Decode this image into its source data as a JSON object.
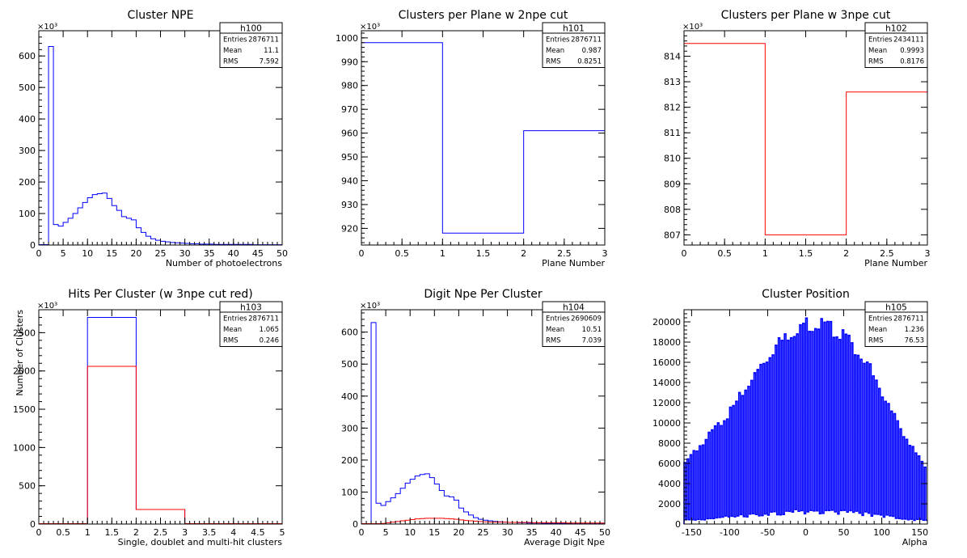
{
  "chart_data": [
    {
      "type": "histogram",
      "title": "Cluster NPE",
      "xlabel": "Number of photoelectrons",
      "ylabel": "",
      "xlim": [
        0,
        50
      ],
      "ylim": [
        0,
        680
      ],
      "y_multiplier": "×10³",
      "x_ticks": [
        0,
        5,
        10,
        15,
        20,
        25,
        30,
        35,
        40,
        45,
        50
      ],
      "y_ticks": [
        0,
        100,
        200,
        300,
        400,
        500,
        600
      ],
      "stats": {
        "name": "h100",
        "rows": [
          [
            "Entries",
            "2876711"
          ],
          [
            "Mean",
            "11.1"
          ],
          [
            "RMS",
            "7.592"
          ]
        ]
      },
      "series": [
        {
          "color": "#0000ff",
          "bin_edges": [
            0,
            1,
            2,
            3,
            4,
            5,
            6,
            7,
            8,
            9,
            10,
            11,
            12,
            13,
            14,
            15,
            16,
            17,
            18,
            19,
            20,
            21,
            22,
            23,
            24,
            25,
            26,
            27,
            28,
            29,
            30,
            31,
            32,
            33,
            34,
            35,
            36,
            37,
            38,
            39,
            40,
            41,
            42,
            43,
            44,
            45,
            46,
            47,
            48,
            49,
            50
          ],
          "values": [
            0,
            0,
            630,
            65,
            60,
            72,
            85,
            100,
            118,
            135,
            150,
            160,
            163,
            165,
            148,
            125,
            110,
            90,
            85,
            80,
            55,
            40,
            28,
            20,
            15,
            12,
            10,
            8,
            7,
            6,
            5,
            4,
            4,
            3,
            3,
            3,
            2,
            2,
            2,
            2,
            2,
            2,
            2,
            2,
            1,
            1,
            1,
            1,
            1,
            1
          ]
        }
      ]
    },
    {
      "type": "histogram",
      "title": "Clusters per Plane w 2npe cut",
      "xlabel": "Plane Number",
      "ylabel": "",
      "xlim": [
        0,
        3
      ],
      "ylim": [
        913,
        1003
      ],
      "y_multiplier": "×10³",
      "x_ticks": [
        0,
        0.5,
        1,
        1.5,
        2,
        2.5,
        3
      ],
      "y_ticks": [
        920,
        930,
        940,
        950,
        960,
        970,
        980,
        990,
        1000
      ],
      "stats": {
        "name": "h101",
        "rows": [
          [
            "Entries",
            "2876711"
          ],
          [
            "Mean",
            "0.987"
          ],
          [
            "RMS",
            "0.8251"
          ]
        ]
      },
      "series": [
        {
          "color": "#0000ff",
          "bin_edges": [
            0,
            1,
            2,
            3
          ],
          "values": [
            998,
            918,
            961
          ]
        }
      ]
    },
    {
      "type": "histogram",
      "title": "Clusters per Plane w 3npe cut",
      "xlabel": "Plane Number",
      "ylabel": "",
      "xlim": [
        0,
        3
      ],
      "ylim": [
        806.6,
        815.0
      ],
      "y_multiplier": "×10³",
      "x_ticks": [
        0,
        0.5,
        1,
        1.5,
        2,
        2.5,
        3
      ],
      "y_ticks": [
        807,
        808,
        809,
        810,
        811,
        812,
        813,
        814
      ],
      "stats": {
        "name": "h102",
        "rows": [
          [
            "Entries",
            "2434111"
          ],
          [
            "Mean",
            "0.9993"
          ],
          [
            "RMS",
            "0.8176"
          ]
        ]
      },
      "series": [
        {
          "color": "#ff0000",
          "bin_edges": [
            0,
            1,
            2,
            3
          ],
          "values": [
            814.5,
            807.0,
            812.6
          ]
        }
      ]
    },
    {
      "type": "histogram",
      "title": "Hits Per Cluster (w 3npe cut red)",
      "xlabel": "Single, doublet and multi-hit clusters",
      "ylabel": "Number of Clusters",
      "xlim": [
        0,
        5
      ],
      "ylim": [
        0,
        2800
      ],
      "y_multiplier": "×10³",
      "x_ticks": [
        0,
        0.5,
        1,
        1.5,
        2,
        2.5,
        3,
        3.5,
        4,
        4.5,
        5
      ],
      "y_ticks": [
        0,
        500,
        1000,
        1500,
        2000,
        2500
      ],
      "stats": {
        "name": "h103",
        "rows": [
          [
            "Entries",
            "2876711"
          ],
          [
            "Mean",
            "1.065"
          ],
          [
            "RMS",
            "0.246"
          ]
        ]
      },
      "series": [
        {
          "color": "#0000ff",
          "bin_edges": [
            0,
            1,
            2,
            3,
            4,
            5
          ],
          "values": [
            0,
            2700,
            190,
            0,
            0
          ]
        },
        {
          "color": "#ff0000",
          "bin_edges": [
            0,
            1,
            2,
            3,
            4,
            5
          ],
          "values": [
            0,
            2060,
            190,
            0,
            0
          ]
        }
      ]
    },
    {
      "type": "histogram",
      "title": "Digit Npe Per Cluster",
      "xlabel": "Average Digit Npe",
      "ylabel": "",
      "xlim": [
        0,
        50
      ],
      "ylim": [
        0,
        670
      ],
      "y_multiplier": "×10³",
      "x_ticks": [
        0,
        5,
        10,
        15,
        20,
        25,
        30,
        35,
        40,
        45,
        50
      ],
      "y_ticks": [
        0,
        100,
        200,
        300,
        400,
        500,
        600
      ],
      "stats": {
        "name": "h104",
        "rows": [
          [
            "Entries",
            "2690609"
          ],
          [
            "Mean",
            "10.51"
          ],
          [
            "RMS",
            "7.039"
          ]
        ]
      },
      "series": [
        {
          "color": "#0000ff",
          "bin_edges": [
            0,
            1,
            2,
            3,
            4,
            5,
            6,
            7,
            8,
            9,
            10,
            11,
            12,
            13,
            14,
            15,
            16,
            17,
            18,
            19,
            20,
            21,
            22,
            23,
            24,
            25,
            26,
            27,
            28,
            29,
            30,
            31,
            32,
            33,
            34,
            35,
            36,
            37,
            38,
            39,
            40,
            41,
            42,
            43,
            44,
            45,
            46,
            47,
            48,
            49,
            50
          ],
          "values": [
            0,
            0,
            630,
            65,
            58,
            70,
            82,
            95,
            112,
            128,
            140,
            150,
            155,
            157,
            145,
            125,
            105,
            88,
            85,
            75,
            50,
            38,
            28,
            20,
            15,
            12,
            10,
            8,
            7,
            6,
            5,
            5,
            4,
            4,
            3,
            3,
            3,
            2,
            2,
            2,
            2,
            2,
            2,
            1,
            1,
            1,
            1,
            1,
            1,
            1
          ]
        },
        {
          "color": "#ff0000",
          "bin_edges": [
            0,
            1,
            2,
            3,
            4,
            5,
            6,
            7,
            8,
            9,
            10,
            11,
            12,
            13,
            14,
            15,
            16,
            17,
            18,
            19,
            20,
            21,
            22,
            23,
            24,
            25,
            26,
            27,
            28,
            29,
            30,
            31,
            32,
            33,
            34,
            35,
            36,
            37,
            38,
            39,
            40,
            41,
            42,
            43,
            44,
            45,
            46,
            47,
            48,
            49,
            50
          ],
          "values": [
            0,
            0,
            0,
            0,
            2,
            4,
            6,
            8,
            10,
            12,
            14,
            16,
            17,
            18,
            18,
            18,
            18,
            17,
            16,
            15,
            13,
            11,
            10,
            9,
            8,
            7,
            6,
            6,
            6,
            6,
            5,
            5,
            5,
            5,
            5,
            4,
            4,
            4,
            4,
            4,
            4,
            4,
            3,
            3,
            3,
            3,
            3,
            3,
            3,
            3
          ]
        }
      ]
    },
    {
      "type": "histogram",
      "title": "Cluster Position",
      "xlabel": "Alpha",
      "ylabel": "",
      "xlim": [
        -160,
        160
      ],
      "ylim": [
        0,
        21200
      ],
      "x_ticks": [
        -150,
        -100,
        -50,
        0,
        50,
        100,
        150
      ],
      "y_ticks": [
        0,
        2000,
        4000,
        6000,
        8000,
        10000,
        12000,
        14000,
        16000,
        18000,
        20000
      ],
      "stats": {
        "name": "h105",
        "rows": [
          [
            "Entries",
            "2876711"
          ],
          [
            "Mean",
            "1.236"
          ],
          [
            "RMS",
            "76.53"
          ]
        ]
      },
      "envelope": {
        "x": [
          -160,
          -130,
          -100,
          -70,
          -40,
          -10,
          0,
          20,
          50,
          80,
          110,
          140,
          160
        ],
        "y": [
          6000,
          8500,
          11000,
          14500,
          17500,
          19500,
          19800,
          19700,
          18800,
          16000,
          11500,
          7500,
          5500
        ]
      },
      "series": [
        {
          "color": "#0000ff",
          "bin_width": 2,
          "dip_fraction": 0.5
        }
      ]
    }
  ]
}
